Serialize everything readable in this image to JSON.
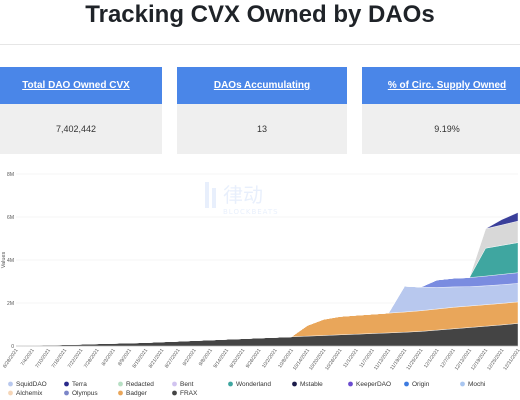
{
  "page": {
    "title": "Tracking CVX Owned by DAOs"
  },
  "cards": [
    {
      "label": "Total DAO Owned CVX",
      "value": "7,402,442"
    },
    {
      "label": "DAOs Accumulating",
      "value": "13"
    },
    {
      "label": "% of Circ. Supply Owned",
      "value": "9.19%"
    }
  ],
  "watermark": {
    "text_cn": "律动",
    "text_en": "BLOCKBEATS"
  },
  "chart_data": {
    "type": "area",
    "stacked": true,
    "ylabel": "Values",
    "ylim": [
      0,
      8000000
    ],
    "y_ticks": [
      0,
      2000000,
      4000000,
      6000000,
      8000000
    ],
    "y_tick_labels": [
      "0",
      "2M",
      "4M",
      "6M",
      "8M"
    ],
    "x": [
      "6/28/2021",
      "7/4/2021",
      "7/10/2021",
      "7/16/2021",
      "7/22/2021",
      "7/28/2021",
      "8/3/2021",
      "8/9/2021",
      "8/15/2021",
      "8/21/2021",
      "8/27/2021",
      "9/2/2021",
      "9/8/2021",
      "9/14/2021",
      "9/20/2021",
      "9/26/2021",
      "10/2/2021",
      "10/8/2021",
      "10/14/2021",
      "10/20/2021",
      "10/26/2021",
      "11/1/2021",
      "11/7/2021",
      "11/13/2021",
      "11/19/2021",
      "11/25/2021",
      "12/1/2021",
      "12/7/2021",
      "12/13/2021",
      "12/19/2021",
      "12/25/2021",
      "12/31/2021"
    ],
    "grid": true,
    "legend_position": "bottom",
    "series": [
      {
        "name": "FRAX",
        "color": "#444444",
        "values": [
          0,
          20000,
          40000,
          60000,
          80000,
          100000,
          120000,
          140000,
          160000,
          190000,
          220000,
          250000,
          280000,
          310000,
          340000,
          370000,
          400000,
          430000,
          460000,
          490000,
          520000,
          550000,
          580000,
          610000,
          640000,
          680000,
          740000,
          800000,
          860000,
          920000,
          980000,
          1050000
        ]
      },
      {
        "name": "Badger",
        "color": "#e9a65a",
        "values": [
          0,
          0,
          0,
          0,
          0,
          0,
          0,
          0,
          0,
          0,
          0,
          0,
          0,
          0,
          0,
          0,
          0,
          0,
          500000,
          750000,
          850000,
          880000,
          900000,
          920000,
          940000,
          960000,
          980000,
          1000000,
          1000000,
          1000000,
          1000000,
          1000000
        ]
      },
      {
        "name": "Bent",
        "color": "#b8c8ee",
        "values": [
          0,
          0,
          0,
          0,
          0,
          0,
          0,
          0,
          0,
          0,
          0,
          0,
          0,
          0,
          0,
          0,
          0,
          0,
          0,
          0,
          0,
          0,
          0,
          0,
          1200000,
          1100000,
          1000000,
          950000,
          900000,
          880000,
          870000,
          860000
        ]
      },
      {
        "name": "Redacted",
        "color": "#7a8ce0",
        "values": [
          0,
          0,
          0,
          0,
          0,
          0,
          0,
          0,
          0,
          0,
          0,
          0,
          0,
          0,
          0,
          0,
          0,
          0,
          0,
          0,
          0,
          0,
          0,
          0,
          0,
          0,
          350000,
          400000,
          420000,
          450000,
          480000,
          500000
        ]
      },
      {
        "name": "Wonderland",
        "color": "#3fa6a0",
        "values": [
          0,
          0,
          0,
          0,
          0,
          0,
          0,
          0,
          0,
          0,
          0,
          0,
          0,
          0,
          0,
          0,
          0,
          0,
          0,
          0,
          0,
          0,
          0,
          0,
          0,
          0,
          0,
          0,
          0,
          1300000,
          1350000,
          1400000
        ]
      },
      {
        "name": "Olympus",
        "color": "#d8d8d8",
        "values": [
          0,
          0,
          0,
          0,
          0,
          0,
          0,
          0,
          0,
          0,
          0,
          0,
          0,
          0,
          0,
          0,
          0,
          0,
          0,
          0,
          0,
          0,
          0,
          0,
          0,
          0,
          0,
          0,
          0,
          900000,
          950000,
          1000000
        ]
      },
      {
        "name": "KeeperDAO",
        "color": "#3a3f9a",
        "values": [
          0,
          0,
          0,
          0,
          0,
          0,
          0,
          0,
          0,
          0,
          0,
          0,
          0,
          0,
          0,
          0,
          0,
          0,
          0,
          0,
          0,
          0,
          0,
          0,
          0,
          0,
          0,
          0,
          0,
          0,
          250000,
          400000
        ]
      }
    ],
    "legend": [
      {
        "name": "SquidDAO",
        "color": "#b8c8ee"
      },
      {
        "name": "Terra",
        "color": "#2a2a8a"
      },
      {
        "name": "Redacted",
        "color": "#b7dfc4"
      },
      {
        "name": "Bent",
        "color": "#d1c4f0"
      },
      {
        "name": "Wonderland",
        "color": "#3fa6a0"
      },
      {
        "name": "Mstable",
        "color": "#1c1c4a"
      },
      {
        "name": "KeeperDAO",
        "color": "#6b4ccf"
      },
      {
        "name": "Origin",
        "color": "#3d7be0"
      },
      {
        "name": "Mochi",
        "color": "#a9c6f0"
      },
      {
        "name": "Alchemix",
        "color": "#f5d6b8"
      },
      {
        "name": "Olympus",
        "color": "#7b86c8"
      },
      {
        "name": "Badger",
        "color": "#e9a65a"
      },
      {
        "name": "FRAX",
        "color": "#444444"
      }
    ]
  }
}
